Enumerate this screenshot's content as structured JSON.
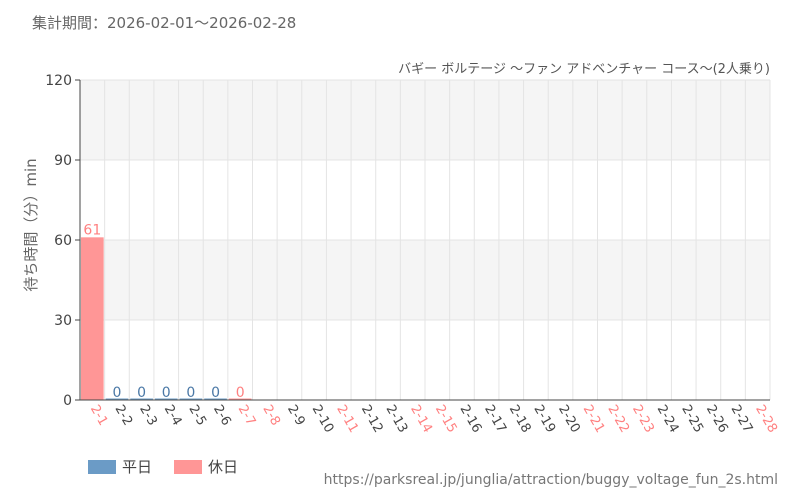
{
  "header": {
    "period_label": "集計期間：2026-02-01～2026-02-28"
  },
  "legend": {
    "items": [
      {
        "label": "平日",
        "color": "#6b9bc6"
      },
      {
        "label": "休日",
        "color": "#ff9696"
      }
    ]
  },
  "footer": {
    "source_url": "https://parksreal.jp/junglia/attraction/buggy_voltage_fun_2s.html"
  },
  "colors": {
    "weekday": "#6b9bc6",
    "holiday": "#ff9696",
    "weekday_label": "#4a78a6",
    "holiday_label": "#ff8080",
    "band": "#f5f5f5",
    "grid": "#e4e4e4",
    "axis": "#444444"
  },
  "chart_data": {
    "type": "bar",
    "title": "バギー ボルテージ ～ファン アドベンチャー コース～(2人乗り)",
    "ylabel": "待ち時間（分）min",
    "xlabel": "",
    "ylim": [
      0,
      120
    ],
    "yticks": [
      0,
      30,
      60,
      90,
      120
    ],
    "grid": true,
    "categories": [
      "2-1",
      "2-2",
      "2-3",
      "2-4",
      "2-5",
      "2-6",
      "2-7",
      "2-8",
      "2-9",
      "2-10",
      "2-11",
      "2-12",
      "2-13",
      "2-14",
      "2-15",
      "2-16",
      "2-17",
      "2-18",
      "2-19",
      "2-20",
      "2-21",
      "2-22",
      "2-23",
      "2-24",
      "2-25",
      "2-26",
      "2-27",
      "2-28"
    ],
    "day_type": [
      "holiday",
      "weekday",
      "weekday",
      "weekday",
      "weekday",
      "weekday",
      "holiday",
      "holiday",
      "weekday",
      "weekday",
      "holiday",
      "weekday",
      "weekday",
      "holiday",
      "holiday",
      "weekday",
      "weekday",
      "weekday",
      "weekday",
      "weekday",
      "holiday",
      "holiday",
      "holiday",
      "weekday",
      "weekday",
      "weekday",
      "weekday",
      "holiday"
    ],
    "values": [
      61,
      0,
      0,
      0,
      0,
      0,
      0,
      null,
      null,
      null,
      null,
      null,
      null,
      null,
      null,
      null,
      null,
      null,
      null,
      null,
      null,
      null,
      null,
      null,
      null,
      null,
      null,
      null
    ],
    "value_labels": [
      "61",
      "0",
      "0",
      "0",
      "0",
      "0",
      "0",
      "",
      "",
      "",
      "",
      "",
      "",
      "",
      "",
      "",
      "",
      "",
      "",
      "",
      "",
      "",
      "",
      "",
      "",
      "",
      "",
      ""
    ]
  }
}
